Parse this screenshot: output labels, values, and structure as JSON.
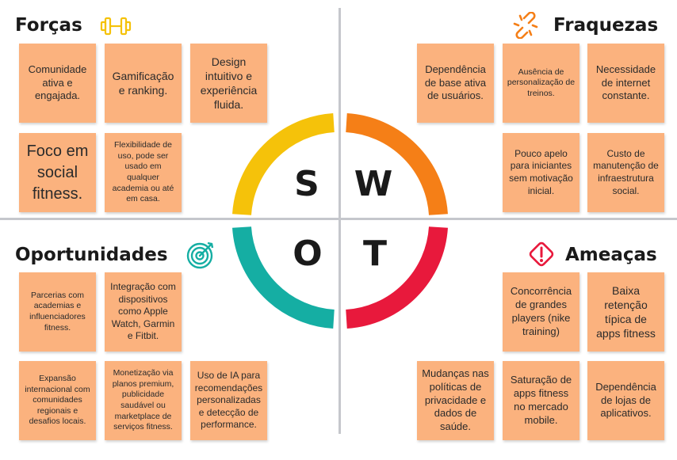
{
  "quadrants": {
    "strengths": {
      "title": "Forças",
      "icon": "dumbbell-icon",
      "color": "#f5c20a",
      "notes": [
        "Comunidade ativa e engajada.",
        "Gamificação e ranking.",
        "Design intuitivo e experiência fluida.",
        "Foco em social fitness.",
        "Flexibilidade de uso, pode ser usado em qualquer academia ou até em casa."
      ]
    },
    "weaknesses": {
      "title": "Fraquezas",
      "icon": "broken-link-icon",
      "color": "#f57f17",
      "notes": [
        "Dependência de base ativa de usuários.",
        "Ausência de personalização de treinos.",
        "Necessidade de internet constante.",
        "Pouco apelo para iniciantes sem motivação inicial.",
        "Custo de manutenção de infraestrutura social."
      ]
    },
    "opportunities": {
      "title": "Oportunidades",
      "icon": "target-icon",
      "color": "#15aea3",
      "notes": [
        "Parcerias com academias e influenciadores fitness.",
        "Integração com dispositivos como Apple Watch, Garmin e Fitbit.",
        "Expansão internacional com comunidades regionais e desafios locais.",
        "Monetização via planos premium, publicidade saudável ou marketplace de serviços fitness.",
        "Uso de IA para recomendações personalizadas e detecção de performance."
      ]
    },
    "threats": {
      "title": "Ameaças",
      "icon": "warning-icon",
      "color": "#e8193c",
      "notes": [
        "Concorrência de grandes players (nike training)",
        "Baixa retenção típica de apps fitness",
        "Mudanças nas políticas de privacidade e dados de saúde.",
        "Saturação de apps fitness no mercado mobile.",
        "Dependência de lojas de aplicativos."
      ]
    }
  },
  "swot_letters": {
    "s": "S",
    "w": "W",
    "o": "O",
    "t": "T"
  }
}
